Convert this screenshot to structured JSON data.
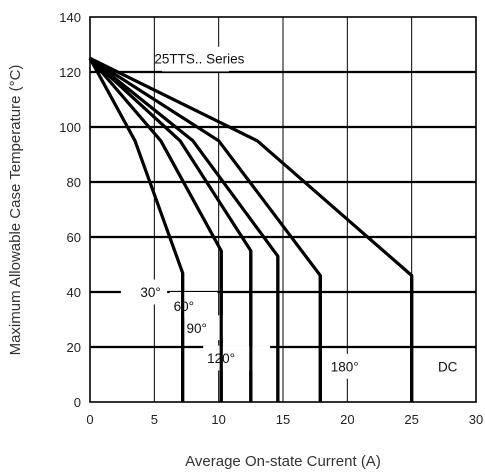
{
  "chart_data": {
    "type": "line",
    "title": "",
    "xlabel": "Average On-state Current (A)",
    "ylabel": "Maximum Allowable Case Temperature (°C)",
    "xlim": [
      0,
      30
    ],
    "ylim": [
      0,
      140
    ],
    "x_ticks": [
      0,
      5,
      10,
      15,
      20,
      25,
      30
    ],
    "y_ticks": [
      0,
      20,
      40,
      60,
      80,
      100,
      120,
      140
    ],
    "grid": true,
    "series_name_label": "25TTS.. Series",
    "series": [
      {
        "name": "30°",
        "points": [
          [
            0,
            125
          ],
          [
            3.5,
            95
          ],
          [
            7.2,
            47
          ]
        ],
        "drop_to": 0
      },
      {
        "name": "60°",
        "points": [
          [
            0,
            125
          ],
          [
            5.5,
            95
          ],
          [
            10.2,
            55
          ]
        ],
        "drop_to": 0
      },
      {
        "name": "90°",
        "points": [
          [
            0,
            125
          ],
          [
            7,
            95
          ],
          [
            12.5,
            55
          ]
        ],
        "drop_to": 0
      },
      {
        "name": "120°",
        "points": [
          [
            0,
            125
          ],
          [
            8,
            95
          ],
          [
            14.6,
            53
          ]
        ],
        "drop_to": 0
      },
      {
        "name": "180°",
        "points": [
          [
            0,
            125
          ],
          [
            10,
            95
          ],
          [
            17.9,
            46
          ]
        ],
        "drop_to": 0
      },
      {
        "name": "DC",
        "points": [
          [
            0,
            125
          ],
          [
            13,
            95
          ],
          [
            25,
            46
          ]
        ],
        "drop_to": 0
      }
    ]
  }
}
